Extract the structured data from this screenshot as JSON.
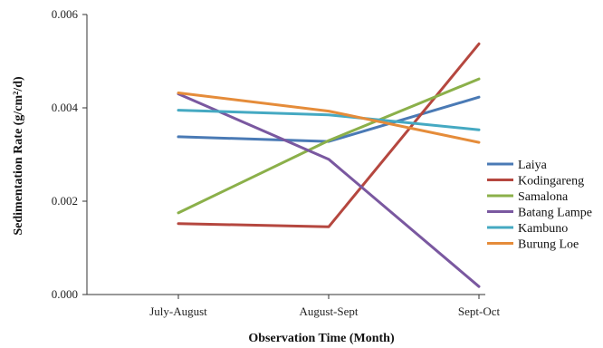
{
  "chart_data": {
    "type": "line",
    "title": "",
    "xlabel": "Observation Time (Month)",
    "ylabel": "Sedimentation Rate (g/cm²/d)",
    "categories": [
      "July-August",
      "August-Sept",
      "Sept-Oct"
    ],
    "ylim": [
      0,
      0.006
    ],
    "yticks": [
      0.0,
      0.002,
      0.004,
      0.006
    ],
    "ytick_labels": [
      "0.000",
      "0.002",
      "0.004",
      "0.006"
    ],
    "grid": false,
    "legend_position": "right",
    "series": [
      {
        "name": "Laiya",
        "color": "#4a7ab5",
        "values": [
          0.00338,
          0.00328,
          0.00423
        ]
      },
      {
        "name": "Kodingareng",
        "color": "#b5473f",
        "values": [
          0.00152,
          0.00145,
          0.00537
        ]
      },
      {
        "name": "Samalona",
        "color": "#8bb04a",
        "values": [
          0.00175,
          0.0033,
          0.00462
        ]
      },
      {
        "name": "Batang Lampe",
        "color": "#7a58a0",
        "values": [
          0.0043,
          0.0029,
          0.00017
        ]
      },
      {
        "name": "Kambuno",
        "color": "#45a9c2",
        "values": [
          0.00395,
          0.00385,
          0.00353
        ]
      },
      {
        "name": "Burung Loe",
        "color": "#e58c3a",
        "values": [
          0.00432,
          0.00393,
          0.00326
        ]
      }
    ]
  }
}
